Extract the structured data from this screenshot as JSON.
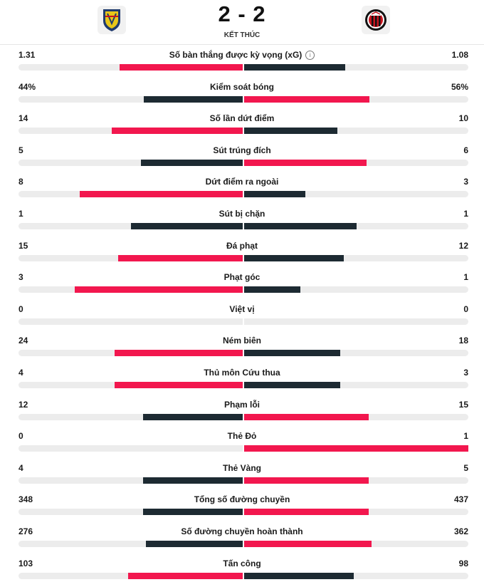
{
  "match": {
    "score": "2 - 2",
    "status": "KẾT THÚC",
    "home_crest_icon": "lecce-crest-icon",
    "away_crest_icon": "ac-milan-crest-icon"
  },
  "colors": {
    "higher": "#f2174e",
    "lower": "#1d2a32",
    "track": "#ececec"
  },
  "stats": [
    {
      "name": "Số bàn thắng được kỳ vọng (xG)",
      "home": "1.31",
      "away": "1.08",
      "home_share": 0.548,
      "away_share": 0.452,
      "info_icon": true
    },
    {
      "name": "Kiểm soát bóng",
      "home": "44%",
      "away": "56%",
      "home_share": 0.44,
      "away_share": 0.56
    },
    {
      "name": "Số lần dứt điểm",
      "home": "14",
      "away": "10",
      "home_share": 0.583,
      "away_share": 0.417
    },
    {
      "name": "Sút trúng đích",
      "home": "5",
      "away": "6",
      "home_share": 0.455,
      "away_share": 0.545
    },
    {
      "name": "Dứt điểm ra ngoài",
      "home": "8",
      "away": "3",
      "home_share": 0.727,
      "away_share": 0.273
    },
    {
      "name": "Sút bị chặn",
      "home": "1",
      "away": "1",
      "home_share": 0.5,
      "away_share": 0.5
    },
    {
      "name": "Đá phạt",
      "home": "15",
      "away": "12",
      "home_share": 0.556,
      "away_share": 0.444
    },
    {
      "name": "Phạt góc",
      "home": "3",
      "away": "1",
      "home_share": 0.75,
      "away_share": 0.25
    },
    {
      "name": "Việt vị",
      "home": "0",
      "away": "0",
      "home_share": 0,
      "away_share": 0
    },
    {
      "name": "Ném biên",
      "home": "24",
      "away": "18",
      "home_share": 0.571,
      "away_share": 0.429
    },
    {
      "name": "Thủ môn Cứu thua",
      "home": "4",
      "away": "3",
      "home_share": 0.571,
      "away_share": 0.429
    },
    {
      "name": "Phạm lỗi",
      "home": "12",
      "away": "15",
      "home_share": 0.444,
      "away_share": 0.556
    },
    {
      "name": "Thẻ Đỏ",
      "home": "0",
      "away": "1",
      "home_share": 0,
      "away_share": 1
    },
    {
      "name": "Thẻ Vàng",
      "home": "4",
      "away": "5",
      "home_share": 0.444,
      "away_share": 0.556
    },
    {
      "name": "Tổng số đường chuyền",
      "home": "348",
      "away": "437",
      "home_share": 0.443,
      "away_share": 0.557
    },
    {
      "name": "Số đường chuyền hoàn thành",
      "home": "276",
      "away": "362",
      "home_share": 0.433,
      "away_share": 0.567
    },
    {
      "name": "Tấn công",
      "home": "103",
      "away": "98",
      "home_share": 0.512,
      "away_share": 0.488
    }
  ]
}
